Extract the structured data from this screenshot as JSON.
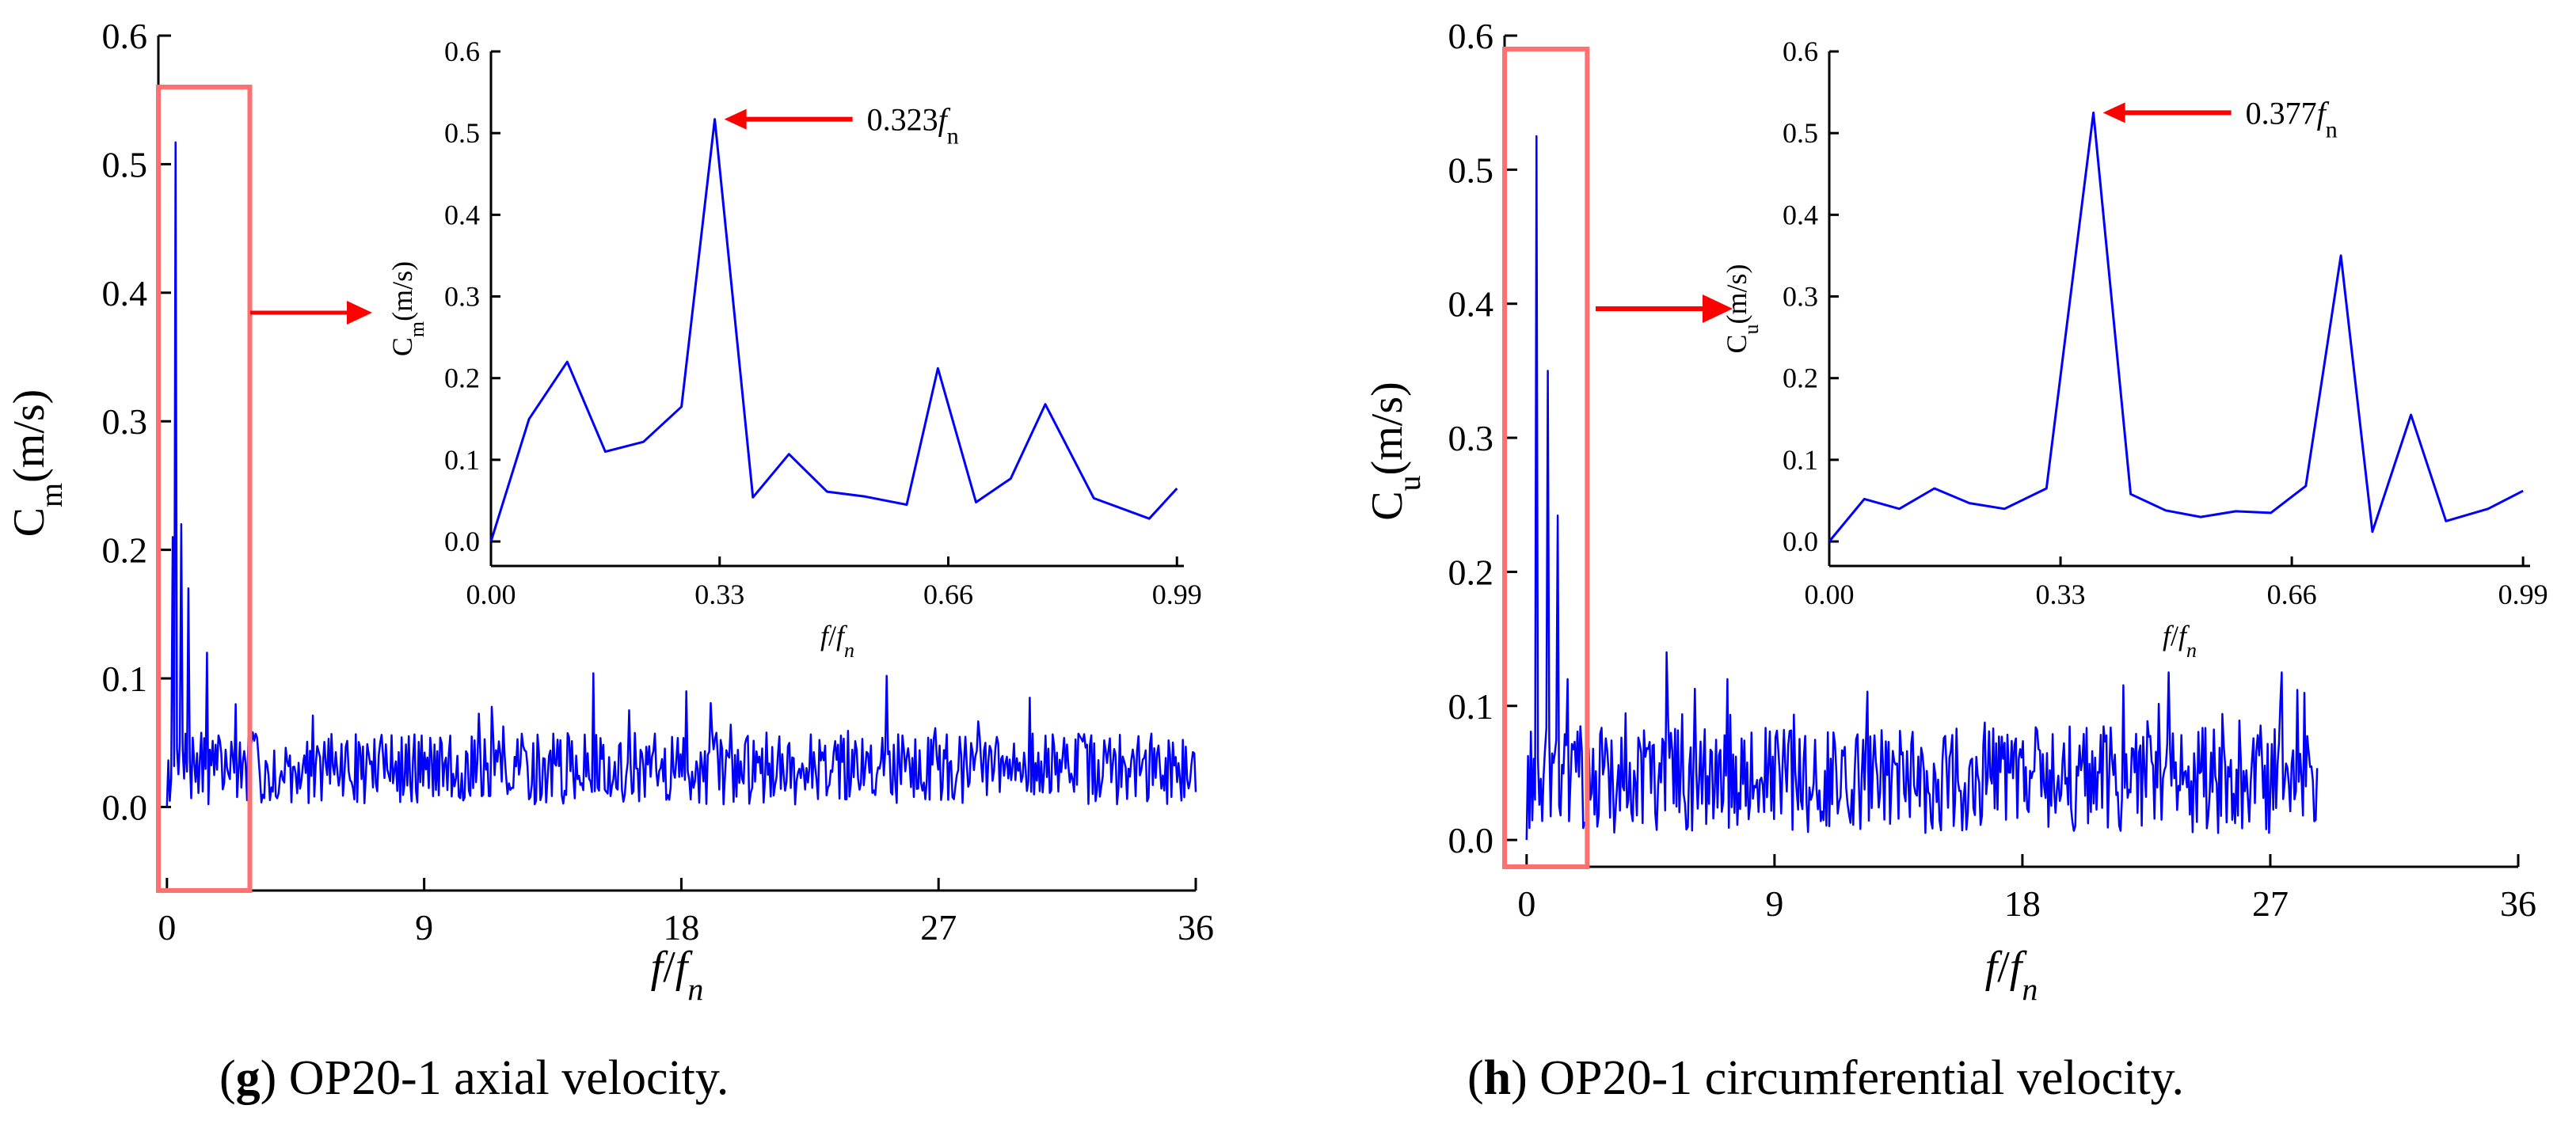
{
  "captions": [
    {
      "letter": "g",
      "text": ") OP20-1 axial velocity."
    },
    {
      "letter": "h",
      "text": ") OP20-1 circumferential velocity."
    }
  ],
  "colors": {
    "series": "#0000ff",
    "highlight": "#ff0000",
    "box": "#ff7070"
  },
  "chart_data": [
    {
      "type": "line",
      "name": "g-main",
      "title": "",
      "ylabel_main": "C",
      "ylabel_sub": "m",
      "ylabel_unit": "(m/s)",
      "xlabel_main": "f",
      "xlabel_slash": "/",
      "xlabel_f": "f",
      "xlabel_sub": "n",
      "xlim": [
        -0.3,
        36
      ],
      "ylim": [
        -0.065,
        0.6
      ],
      "xticks": [
        0,
        9,
        18,
        27,
        36
      ],
      "xtick_labels": [
        "0",
        "9",
        "18",
        "27",
        "36"
      ],
      "yticks": [
        0.0,
        0.1,
        0.2,
        0.3,
        0.4,
        0.5,
        0.6
      ],
      "ytick_labels": [
        "0.0",
        "0.1",
        "0.2",
        "0.3",
        "0.4",
        "0.5",
        "0.6"
      ],
      "n_points": 720,
      "x_start": 0,
      "x_end": 36,
      "y_start": 0.0,
      "noise_base": 0.03,
      "noise_amp": 0.028,
      "seed": 7,
      "peaks": [
        {
          "x": 0.3,
          "y": 0.517
        },
        {
          "x": 0.2,
          "y": 0.21
        },
        {
          "x": 0.5,
          "y": 0.22
        },
        {
          "x": 0.75,
          "y": 0.17
        },
        {
          "x": 1.4,
          "y": 0.12
        },
        {
          "x": 2.4,
          "y": 0.08
        },
        {
          "x": 14.9,
          "y": 0.104
        },
        {
          "x": 25.2,
          "y": 0.102
        },
        {
          "x": 30.2,
          "y": 0.085
        },
        {
          "x": 18.2,
          "y": 0.09
        }
      ],
      "highlight_box": {
        "x0": -0.3,
        "x1": 2.9,
        "y0": -0.065,
        "y1": 0.56
      }
    },
    {
      "type": "line",
      "name": "g-inset",
      "ylabel_main": "C",
      "ylabel_sub": "m",
      "ylabel_unit": "(m/s)",
      "xlabel_main": "f",
      "xlabel_slash": "/",
      "xlabel_f": "f",
      "xlabel_sub": "n",
      "xlim": [
        0,
        1.0
      ],
      "ylim": [
        -0.03,
        0.6
      ],
      "xticks": [
        0.0,
        0.33,
        0.66,
        0.99
      ],
      "xtick_labels": [
        "0.00",
        "0.33",
        "0.66",
        "0.99"
      ],
      "yticks": [
        0.0,
        0.1,
        0.2,
        0.3,
        0.4,
        0.5,
        0.6
      ],
      "ytick_labels": [
        "0.0",
        "0.1",
        "0.2",
        "0.3",
        "0.4",
        "0.5",
        "0.6"
      ],
      "x": [
        0.0,
        0.055,
        0.11,
        0.165,
        0.22,
        0.275,
        0.323,
        0.378,
        0.43,
        0.485,
        0.54,
        0.6,
        0.645,
        0.7,
        0.75,
        0.8,
        0.87,
        0.95,
        0.99
      ],
      "y": [
        0.0,
        0.15,
        0.22,
        0.11,
        0.122,
        0.165,
        0.517,
        0.054,
        0.107,
        0.061,
        0.055,
        0.045,
        0.212,
        0.048,
        0.077,
        0.168,
        0.053,
        0.028,
        0.065
      ],
      "annotation": {
        "x": 0.323,
        "y": 0.517,
        "text_main": "0.323",
        "text_f": "f",
        "text_sub": "n"
      }
    },
    {
      "type": "line",
      "name": "h-main",
      "title": "",
      "ylabel_main": "C",
      "ylabel_sub": "u",
      "ylabel_unit": "(m/s)",
      "xlabel_main": "f",
      "xlabel_slash": "/",
      "xlabel_f": "f",
      "xlabel_sub": "n",
      "xlim": [
        -0.8,
        36
      ],
      "ylim": [
        -0.02,
        0.6
      ],
      "xticks": [
        0,
        9,
        18,
        27,
        36
      ],
      "xtick_labels": [
        "0",
        "9",
        "18",
        "27",
        "36"
      ],
      "yticks": [
        0.0,
        0.1,
        0.2,
        0.3,
        0.4,
        0.5,
        0.6
      ],
      "ytick_labels": [
        "0.0",
        "0.1",
        "0.2",
        "0.3",
        "0.4",
        "0.5",
        "0.6"
      ],
      "n_points": 560,
      "x_start": 0,
      "x_end": 28.7,
      "y_start": 0.0,
      "noise_base": 0.045,
      "noise_amp": 0.04,
      "seed": 13,
      "peaks": [
        {
          "x": 0.38,
          "y": 0.525
        },
        {
          "x": 0.75,
          "y": 0.35
        },
        {
          "x": 1.15,
          "y": 0.242
        },
        {
          "x": 1.5,
          "y": 0.12
        },
        {
          "x": 5.1,
          "y": 0.14
        },
        {
          "x": 7.3,
          "y": 0.12
        },
        {
          "x": 23.3,
          "y": 0.125
        },
        {
          "x": 27.4,
          "y": 0.125
        },
        {
          "x": 28.0,
          "y": 0.112
        }
      ],
      "highlight_box": {
        "x0": -0.8,
        "x1": 2.2,
        "y0": -0.02,
        "y1": 0.59
      }
    },
    {
      "type": "line",
      "name": "h-inset",
      "ylabel_main": "C",
      "ylabel_sub": "u",
      "ylabel_unit": "(m/s)",
      "xlabel_main": "f",
      "xlabel_slash": "/",
      "xlabel_f": "f",
      "xlabel_sub": "n",
      "xlim": [
        0,
        1.0
      ],
      "ylim": [
        -0.03,
        0.6
      ],
      "xticks": [
        0.0,
        0.33,
        0.66,
        0.99
      ],
      "xtick_labels": [
        "0.00",
        "0.33",
        "0.66",
        "0.99"
      ],
      "yticks": [
        0.0,
        0.1,
        0.2,
        0.3,
        0.4,
        0.5,
        0.6
      ],
      "ytick_labels": [
        "0.0",
        "0.1",
        "0.2",
        "0.3",
        "0.4",
        "0.5",
        "0.6"
      ],
      "x": [
        0.0,
        0.05,
        0.1,
        0.15,
        0.2,
        0.25,
        0.31,
        0.377,
        0.43,
        0.48,
        0.53,
        0.58,
        0.63,
        0.68,
        0.73,
        0.775,
        0.83,
        0.88,
        0.94,
        0.99
      ],
      "y": [
        0.0,
        0.052,
        0.04,
        0.065,
        0.047,
        0.04,
        0.065,
        0.525,
        0.058,
        0.038,
        0.03,
        0.037,
        0.035,
        0.068,
        0.35,
        0.012,
        0.155,
        0.025,
        0.04,
        0.062
      ],
      "annotation": {
        "x": 0.377,
        "y": 0.525,
        "text_main": "0.377",
        "text_f": "f",
        "text_sub": "n"
      }
    }
  ]
}
